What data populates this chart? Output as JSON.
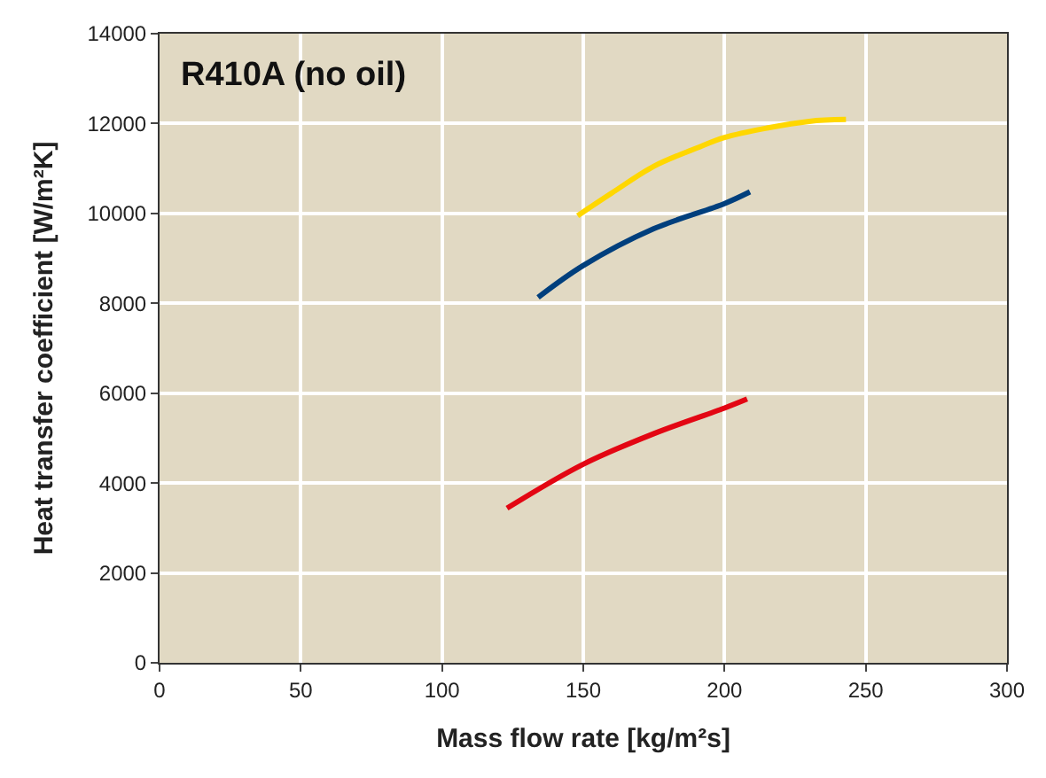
{
  "chart_data": {
    "type": "line",
    "title": "R410A (no oil)",
    "xlabel": "Mass flow rate [kg/m²s]",
    "ylabel": "Heat transfer coefficient [W/m²K]",
    "xlim": [
      0,
      300
    ],
    "xticks": [
      0,
      50,
      100,
      150,
      200,
      250,
      300
    ],
    "ylim": [
      0,
      14000
    ],
    "yticks": [
      0,
      2000,
      4000,
      6000,
      8000,
      10000,
      12000,
      14000
    ],
    "grid": true,
    "marker": "none",
    "line_style": "solid",
    "series": [
      {
        "color": "#ffd700",
        "x": [
          148,
          160,
          175,
          190,
          200,
          215,
          230,
          243
        ],
        "values": [
          9950,
          10450,
          11050,
          11450,
          11690,
          11900,
          12050,
          12090
        ]
      },
      {
        "color": "#003f7d",
        "x": [
          134,
          150,
          175,
          200,
          209
        ],
        "values": [
          8130,
          8840,
          9660,
          10220,
          10480
        ]
      },
      {
        "color": "#e30613",
        "x": [
          123,
          150,
          175,
          200,
          208
        ],
        "values": [
          3440,
          4420,
          5100,
          5670,
          5870
        ]
      }
    ]
  }
}
